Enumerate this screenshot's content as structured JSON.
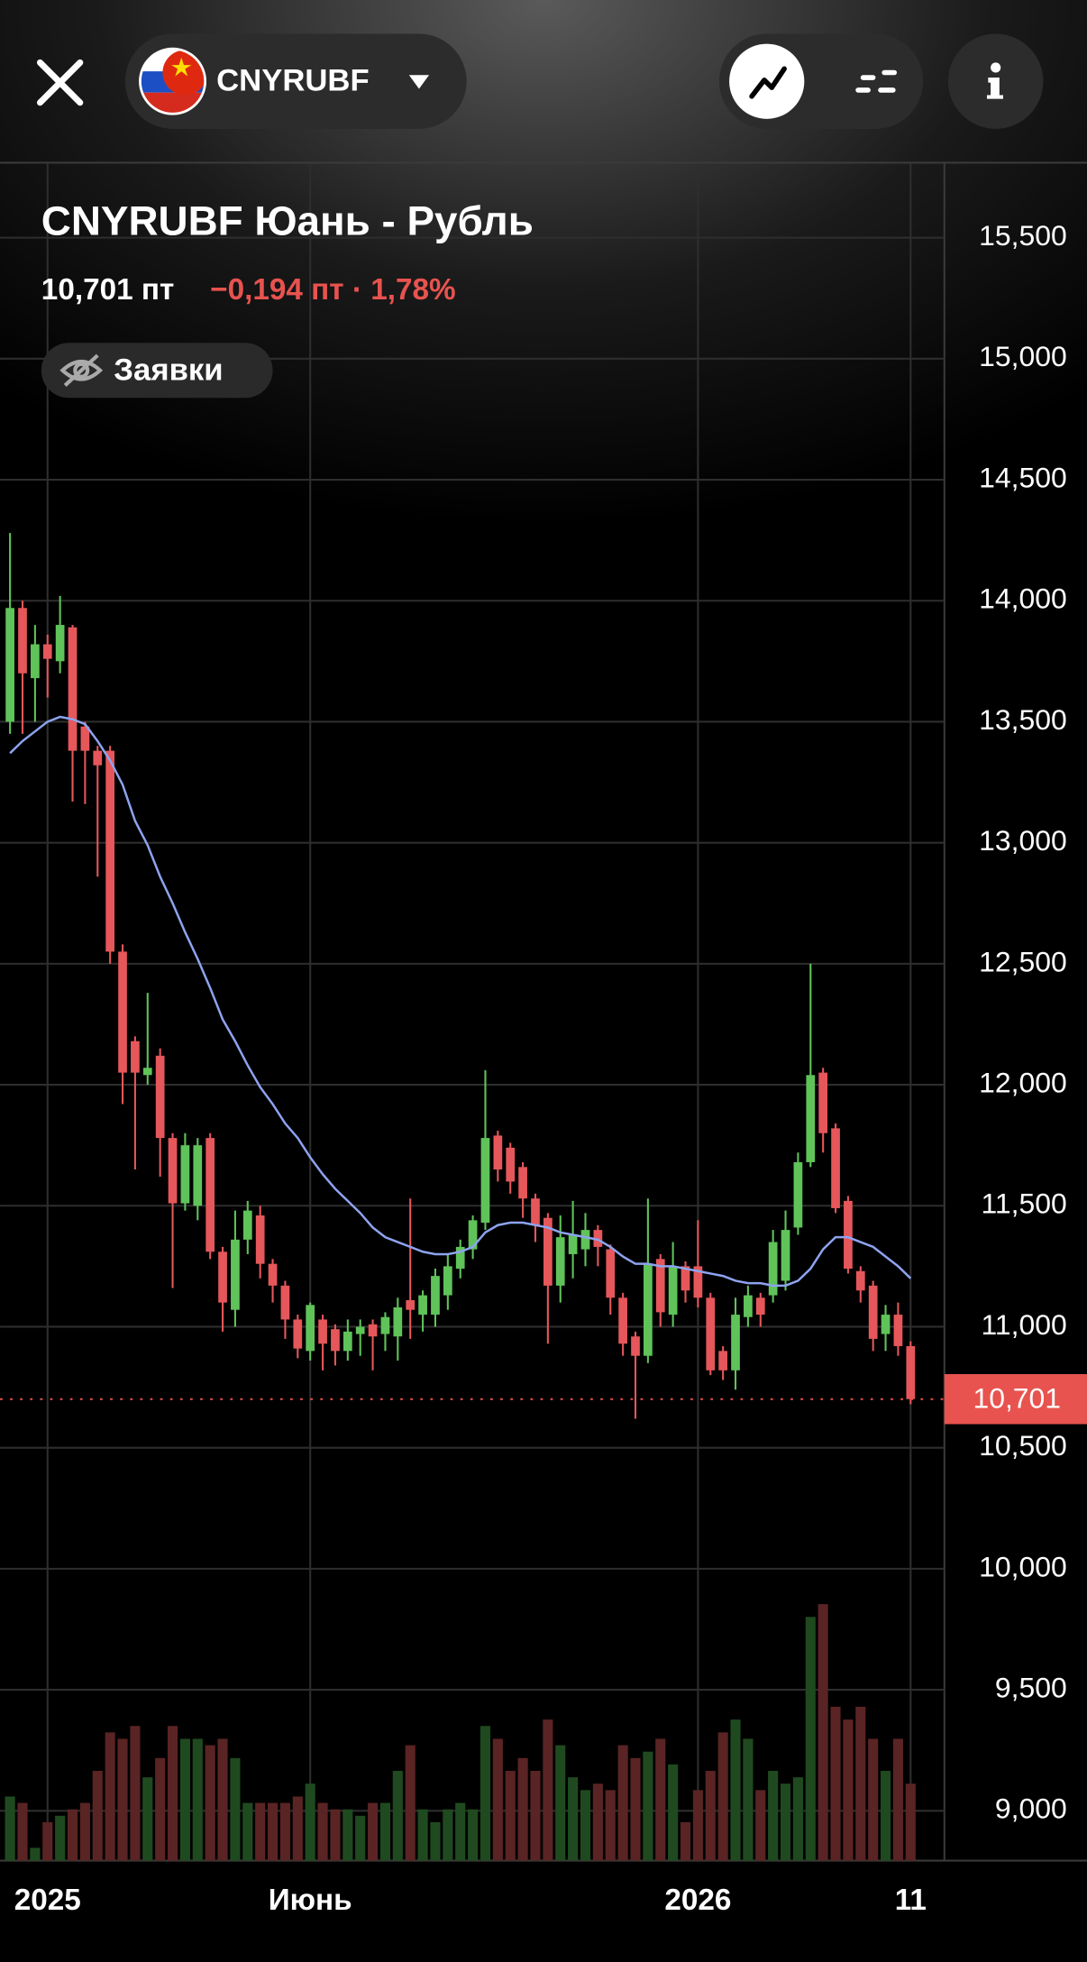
{
  "header": {
    "ticker": "CNYRUBF",
    "orders": "Заявки"
  },
  "quote": {
    "price": "10,701 пт",
    "change": "−0,194 пт · 1,78%"
  },
  "chart_data": {
    "type": "candlestick",
    "title": "CNYRUBF Юань - Рубль",
    "categories": [
      null,
      null,
      null,
      "2025",
      null,
      null,
      null,
      null,
      null,
      null,
      null,
      null,
      null,
      null,
      null,
      null,
      null,
      null,
      null,
      null,
      null,
      null,
      null,
      null,
      "Июнь",
      null,
      null,
      null,
      null,
      null,
      null,
      null,
      null,
      null,
      null,
      null,
      null,
      null,
      null,
      null,
      null,
      null,
      null,
      null,
      null,
      null,
      null,
      null,
      null,
      null,
      null,
      null,
      null,
      null,
      null,
      "2026",
      null,
      null,
      null,
      null,
      null,
      null,
      null,
      null,
      null,
      null,
      null,
      null,
      null,
      null,
      null,
      null,
      "11"
    ],
    "open": [
      13.5,
      13.97,
      13.68,
      13.82,
      13.75,
      13.89,
      13.48,
      13.38,
      13.38,
      12.55,
      12.18,
      12.04,
      12.12,
      11.78,
      11.51,
      11.5,
      11.78,
      11.31,
      11.07,
      11.36,
      11.46,
      11.26,
      11.17,
      11.03,
      10.9,
      11.03,
      10.99,
      10.9,
      10.97,
      11.01,
      10.97,
      10.96,
      11.11,
      11.05,
      11.05,
      11.13,
      11.24,
      11.32,
      11.43,
      11.79,
      11.74,
      11.66,
      11.53,
      11.45,
      11.17,
      11.3,
      11.32,
      11.4,
      11.32,
      11.12,
      10.96,
      10.88,
      11.28,
      11.05,
      11.25,
      11.25,
      11.12,
      10.9,
      10.82,
      11.04,
      11.12,
      11.13,
      11.19,
      11.41,
      11.68,
      12.05,
      11.82,
      11.52,
      11.23,
      11.17,
      10.97,
      11.05,
      10.92
    ],
    "high": [
      14.28,
      14.0,
      13.9,
      13.86,
      14.02,
      13.9,
      13.5,
      13.4,
      13.4,
      12.58,
      12.2,
      12.38,
      12.15,
      11.8,
      11.8,
      11.78,
      11.8,
      11.33,
      11.48,
      11.52,
      11.5,
      11.28,
      11.19,
      11.05,
      11.1,
      11.05,
      11.01,
      11.03,
      11.03,
      11.03,
      11.06,
      11.12,
      11.53,
      11.15,
      11.24,
      11.3,
      11.36,
      11.46,
      12.06,
      11.81,
      11.76,
      11.68,
      11.55,
      11.47,
      11.46,
      11.52,
      11.47,
      11.42,
      11.34,
      11.14,
      10.98,
      11.53,
      11.3,
      11.35,
      11.27,
      11.44,
      11.14,
      10.92,
      11.12,
      11.17,
      11.14,
      11.4,
      11.48,
      11.72,
      12.5,
      12.07,
      11.84,
      11.54,
      11.25,
      11.19,
      11.09,
      11.1,
      10.94
    ],
    "low": [
      13.45,
      13.45,
      13.5,
      13.6,
      13.7,
      13.17,
      13.16,
      12.86,
      12.5,
      11.92,
      11.65,
      12.0,
      11.62,
      11.16,
      11.48,
      11.44,
      11.28,
      10.98,
      11.0,
      11.3,
      11.2,
      11.1,
      10.95,
      10.87,
      10.86,
      10.82,
      10.84,
      10.86,
      10.88,
      10.82,
      10.9,
      10.86,
      10.95,
      10.98,
      11.0,
      11.07,
      11.2,
      11.28,
      11.4,
      11.6,
      11.55,
      11.45,
      11.35,
      10.93,
      11.1,
      11.2,
      11.25,
      11.25,
      11.05,
      10.88,
      10.62,
      10.85,
      11.0,
      11.0,
      11.1,
      11.08,
      10.8,
      10.78,
      10.74,
      11.0,
      11.0,
      11.1,
      11.15,
      11.38,
      11.66,
      11.72,
      11.47,
      11.22,
      11.1,
      10.9,
      10.9,
      10.88,
      10.68
    ],
    "close": [
      13.97,
      13.7,
      13.82,
      13.76,
      13.9,
      13.38,
      13.38,
      13.32,
      12.55,
      12.05,
      12.05,
      12.07,
      11.78,
      11.51,
      11.75,
      11.75,
      11.31,
      11.1,
      11.36,
      11.48,
      11.26,
      11.17,
      11.03,
      10.91,
      11.09,
      10.93,
      10.9,
      10.98,
      11.0,
      10.96,
      11.04,
      11.08,
      11.07,
      11.13,
      11.21,
      11.25,
      11.33,
      11.44,
      11.78,
      11.65,
      11.6,
      11.53,
      11.42,
      11.17,
      11.37,
      11.38,
      11.4,
      11.33,
      11.12,
      10.93,
      10.88,
      11.26,
      11.06,
      11.25,
      11.15,
      11.12,
      10.82,
      10.82,
      11.05,
      11.13,
      11.05,
      11.35,
      11.4,
      11.68,
      12.04,
      11.8,
      11.49,
      11.24,
      11.15,
      10.95,
      11.05,
      10.92,
      10.701
    ],
    "volume": [
      50,
      45,
      10,
      30,
      35,
      40,
      45,
      70,
      100,
      95,
      105,
      65,
      80,
      105,
      95,
      95,
      90,
      95,
      80,
      45,
      45,
      45,
      45,
      50,
      60,
      45,
      40,
      40,
      35,
      45,
      45,
      70,
      90,
      40,
      30,
      40,
      45,
      40,
      105,
      95,
      70,
      80,
      70,
      110,
      90,
      65,
      55,
      60,
      55,
      90,
      80,
      85,
      95,
      75,
      30,
      55,
      70,
      100,
      110,
      95,
      55,
      70,
      60,
      65,
      190,
      200,
      120,
      110,
      120,
      95,
      70,
      95,
      60
    ],
    "ma": {
      "color": "#8ea3ef",
      "values": [
        13.37,
        13.42,
        13.46,
        13.5,
        13.52,
        13.51,
        13.49,
        13.42,
        13.34,
        13.24,
        13.09,
        12.99,
        12.86,
        12.75,
        12.63,
        12.52,
        12.4,
        12.27,
        12.18,
        12.08,
        11.99,
        11.92,
        11.84,
        11.78,
        11.7,
        11.63,
        11.57,
        11.52,
        11.47,
        11.41,
        11.37,
        11.35,
        11.33,
        11.31,
        11.3,
        11.3,
        11.31,
        11.33,
        11.39,
        11.42,
        11.43,
        11.43,
        11.42,
        11.41,
        11.39,
        11.38,
        11.37,
        11.36,
        11.33,
        11.29,
        11.26,
        11.26,
        11.25,
        11.25,
        11.24,
        11.23,
        11.22,
        11.21,
        11.19,
        11.18,
        11.18,
        11.17,
        11.17,
        11.19,
        11.24,
        11.32,
        11.37,
        11.37,
        11.35,
        11.33,
        11.29,
        11.25,
        11.2
      ]
    },
    "up_color": "#5fc35a",
    "down_color": "#e5575a",
    "volume_up_color": "#1f4a1f",
    "volume_down_color": "#5a2424",
    "last_price": {
      "value": 10.701,
      "label": "10,701",
      "color": "#e8534f"
    },
    "ylim": [
      8.794,
      15.81
    ],
    "yticks": [
      {
        "value": 9,
        "label": "9,000"
      },
      {
        "value": 9.5,
        "label": "9,500"
      },
      {
        "value": 10,
        "label": "10,000"
      },
      {
        "value": 10.5,
        "label": "10,500"
      },
      {
        "value": 11,
        "label": "11,000"
      },
      {
        "value": 11.5,
        "label": "11,500"
      },
      {
        "value": 12,
        "label": "12,000"
      },
      {
        "value": 12.5,
        "label": "12,500"
      },
      {
        "value": 13,
        "label": "13,000"
      },
      {
        "value": 13.5,
        "label": "13,500"
      },
      {
        "value": 14,
        "label": "14,000"
      },
      {
        "value": 14.5,
        "label": "14,500"
      },
      {
        "value": 15,
        "label": "15,000"
      },
      {
        "value": 15.5,
        "label": "15,500"
      }
    ],
    "grid": true
  }
}
